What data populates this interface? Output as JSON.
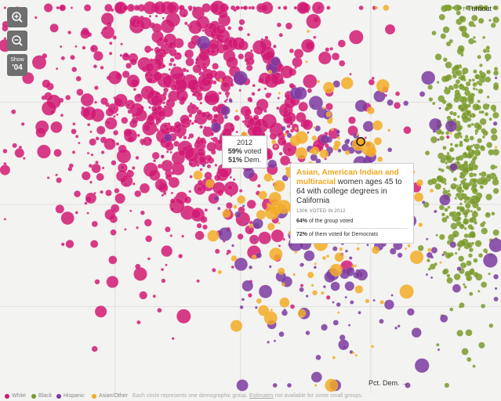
{
  "controls": {
    "zoom_in": "zoom-in-icon",
    "zoom_out": "zoom-out-icon",
    "show_label": "Show",
    "show_year": "'04"
  },
  "axes": {
    "y_label": "↑ Turnout",
    "x_label": "Pct. Dem. →"
  },
  "legend": {
    "items": [
      {
        "label": "White",
        "color": "#d11a73"
      },
      {
        "label": "Black",
        "color": "#7a9a2b"
      },
      {
        "label": "Hispanic",
        "color": "#7b3aa0"
      },
      {
        "label": "Asian/Other",
        "color": "#f2ac27"
      }
    ],
    "note_pre": "Each circle represents one demographic group. ",
    "note_link": "Estimates",
    "note_post": " not available for some small groups."
  },
  "tooltip_small": {
    "year": "2012",
    "voted_pct": "59%",
    "voted_label": "voted",
    "dem_pct": "51%",
    "dem_label": "Dem."
  },
  "tooltip_large": {
    "highlight": "Asian, American Indian and multiracial",
    "rest": " women ages 45 to 64 with college degrees in California",
    "sub": "130K voted in 2012",
    "row1_pct": "64%",
    "row1_text": " of the group voted",
    "row2_pct": "72%",
    "row2_text": " of them voted for Democrats"
  },
  "chart_data": {
    "type": "scatter",
    "xlabel": "Pct. Dem.",
    "ylabel": "Turnout",
    "xlim": [
      0,
      100
    ],
    "ylim": [
      0,
      100
    ],
    "grid": true,
    "series": [
      {
        "name": "White",
        "color": "#d11a73",
        "center_x": 37,
        "spread_x": 16,
        "center_y": 72,
        "spread_y": 18,
        "count": 900
      },
      {
        "name": "Black",
        "color": "#7a9a2b",
        "center_x": 93,
        "spread_x": 3,
        "center_y": 60,
        "spread_y": 20,
        "count": 500
      },
      {
        "name": "Hispanic",
        "color": "#7b3aa0",
        "center_x": 68,
        "spread_x": 13,
        "center_y": 42,
        "spread_y": 22,
        "count": 220
      },
      {
        "name": "Asian/Other",
        "color": "#f2ac27",
        "center_x": 65,
        "spread_x": 10,
        "center_y": 48,
        "spread_y": 18,
        "count": 180
      }
    ],
    "highlighted_points": [
      {
        "label": "2012",
        "x": 51,
        "y": 59
      },
      {
        "label": "Asian, American Indian and multiracial women ages 45 to 64 with college degrees in California",
        "x": 72,
        "y": 64
      }
    ]
  }
}
